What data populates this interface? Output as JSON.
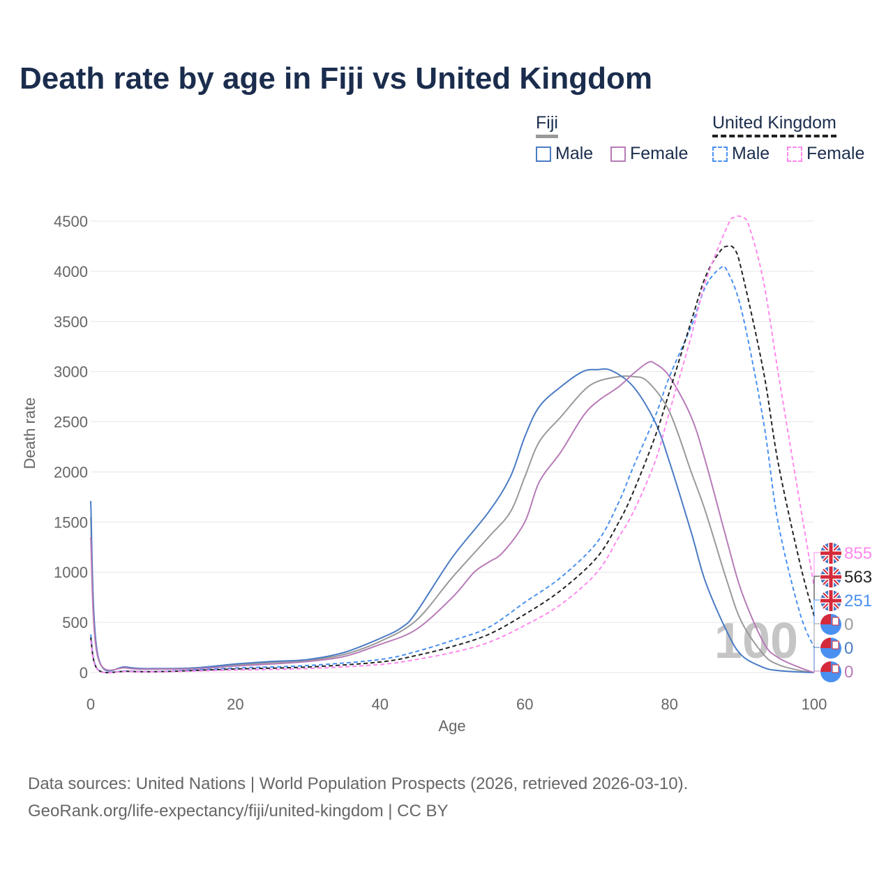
{
  "title": "Death rate by age in Fiji vs United Kingdom",
  "legend": {
    "groups": [
      {
        "name": "Fiji",
        "items": [
          "Male",
          "Female"
        ]
      },
      {
        "name": "United Kingdom",
        "items": [
          "Male",
          "Female"
        ]
      }
    ]
  },
  "footer": {
    "line1": "Data sources: United Nations | World Population Prospects (2026, retrieved 2026-03-10).",
    "line2": "GeoRank.org/life-expectancy/fiji/united-kingdom | CC BY"
  },
  "chart_data": {
    "type": "line",
    "title": "Death rate by age in Fiji vs United Kingdom",
    "xlabel": "Age",
    "ylabel": "Death rate",
    "xlim": [
      0,
      100
    ],
    "ylim": [
      0,
      4500
    ],
    "xticks": [
      0,
      20,
      40,
      60,
      80,
      100
    ],
    "yticks": [
      0,
      500,
      1000,
      1500,
      2000,
      2500,
      3000,
      3500,
      4000,
      4500
    ],
    "grid": true,
    "legend_position": "top-right",
    "watermark_age": "100",
    "series": [
      {
        "name": "Fiji Total",
        "country": "Fiji",
        "color": "#999999",
        "dash": false,
        "end_label": "0",
        "flag": "fiji",
        "x": [
          0,
          1,
          5,
          10,
          15,
          20,
          25,
          30,
          35,
          40,
          45,
          50,
          55,
          58,
          60,
          62,
          65,
          68,
          70,
          73,
          75,
          77,
          80,
          83,
          85,
          88,
          90,
          93,
          95,
          98,
          100
        ],
        "y": [
          1550,
          160,
          50,
          38,
          45,
          75,
          100,
          120,
          180,
          310,
          520,
          950,
          1350,
          1600,
          1950,
          2300,
          2550,
          2800,
          2900,
          2950,
          2950,
          2900,
          2600,
          2000,
          1600,
          900,
          500,
          180,
          80,
          20,
          0
        ]
      },
      {
        "name": "Fiji Male",
        "country": "Fiji",
        "color": "#4a7bc4",
        "dash": false,
        "end_label": "0",
        "flag": "fiji",
        "x": [
          0,
          1,
          5,
          10,
          15,
          20,
          25,
          30,
          35,
          40,
          43,
          45,
          50,
          55,
          58,
          60,
          62,
          65,
          68,
          70,
          72,
          75,
          78,
          80,
          83,
          85,
          88,
          90,
          93,
          95,
          98,
          100
        ],
        "y": [
          1710,
          170,
          55,
          40,
          50,
          85,
          110,
          130,
          200,
          340,
          450,
          600,
          1150,
          1600,
          1950,
          2350,
          2650,
          2850,
          3000,
          3020,
          3010,
          2850,
          2500,
          2100,
          1400,
          900,
          400,
          170,
          50,
          20,
          5,
          0
        ]
      },
      {
        "name": "Fiji Female",
        "country": "Fiji",
        "color": "#b77bb7",
        "dash": false,
        "end_label": "0",
        "flag": "fiji",
        "x": [
          0,
          1,
          5,
          10,
          15,
          20,
          25,
          30,
          35,
          40,
          45,
          50,
          53,
          55,
          57,
          60,
          62,
          65,
          68,
          70,
          73,
          75,
          77,
          78,
          80,
          83,
          85,
          88,
          90,
          93,
          95,
          98,
          100
        ],
        "y": [
          1350,
          150,
          45,
          35,
          40,
          65,
          85,
          110,
          160,
          280,
          430,
          750,
          1000,
          1100,
          1200,
          1500,
          1900,
          2200,
          2550,
          2700,
          2850,
          2980,
          3090,
          3080,
          2950,
          2550,
          2100,
          1300,
          800,
          300,
          150,
          50,
          0
        ]
      },
      {
        "name": "United Kingdom Male",
        "country": "United Kingdom",
        "color": "#4a90f0",
        "dash": true,
        "end_label": "251",
        "flag": "uk",
        "x": [
          0,
          1,
          5,
          10,
          20,
          30,
          40,
          45,
          50,
          55,
          60,
          65,
          70,
          73,
          75,
          78,
          80,
          83,
          85,
          87,
          88,
          90,
          93,
          95,
          98,
          100
        ],
        "y": [
          380,
          30,
          15,
          12,
          45,
          70,
          130,
          210,
          320,
          450,
          700,
          950,
          1300,
          1700,
          2050,
          2550,
          2950,
          3450,
          3850,
          4030,
          4000,
          3600,
          2500,
          1500,
          600,
          251
        ]
      },
      {
        "name": "United Kingdom Total",
        "country": "United Kingdom",
        "color": "#222222",
        "dash": true,
        "end_label": "563",
        "flag": "uk",
        "x": [
          0,
          1,
          5,
          10,
          20,
          30,
          40,
          45,
          50,
          55,
          60,
          65,
          70,
          73,
          75,
          78,
          80,
          83,
          85,
          87,
          88,
          89,
          90,
          93,
          95,
          98,
          100
        ],
        "y": [
          350,
          28,
          12,
          10,
          35,
          55,
          105,
          170,
          260,
          380,
          580,
          820,
          1150,
          1500,
          1800,
          2350,
          2800,
          3500,
          3950,
          4200,
          4250,
          4220,
          4000,
          3000,
          2100,
          1100,
          563
        ]
      },
      {
        "name": "United Kingdom Female",
        "country": "United Kingdom",
        "color": "#ff88ee",
        "dash": true,
        "end_label": "855",
        "flag": "uk",
        "x": [
          0,
          1,
          5,
          10,
          20,
          30,
          40,
          45,
          50,
          55,
          60,
          65,
          70,
          73,
          75,
          78,
          80,
          83,
          85,
          88,
          89,
          90,
          91,
          93,
          95,
          98,
          100
        ],
        "y": [
          320,
          25,
          10,
          8,
          25,
          40,
          80,
          130,
          200,
          300,
          470,
          680,
          1000,
          1350,
          1600,
          2100,
          2600,
          3350,
          3900,
          4450,
          4540,
          4540,
          4450,
          3900,
          3000,
          1700,
          855
        ]
      }
    ]
  }
}
